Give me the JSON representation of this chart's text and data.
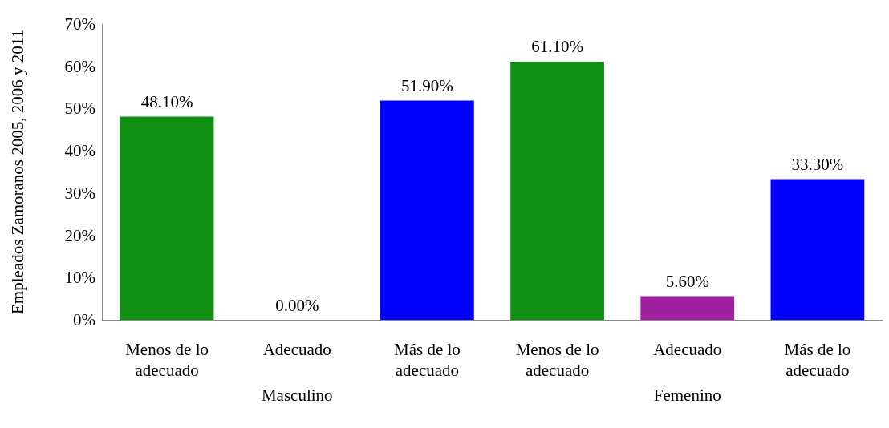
{
  "chart_data": {
    "type": "bar",
    "ylabel": "Empleados Zamoranos 2005, 2006 y 2011",
    "categories": [
      "Menos de lo adecuado",
      "Adecuado",
      "Más de lo adecuado",
      "Menos de lo adecuado",
      "Adecuado",
      "Más de lo adecuado"
    ],
    "values": [
      48.1,
      0,
      51.9,
      61.1,
      5.6,
      33.3
    ],
    "colors": [
      "#109010",
      "#a020a0",
      "#0000ff",
      "#109010",
      "#a020a0",
      "#0000ff"
    ],
    "value_labels": [
      "48.10%",
      "0.00%",
      "51.90%",
      "61.10%",
      "5.60%",
      "33.30%"
    ],
    "ylim": [
      0,
      70
    ],
    "yticks": [
      {
        "value": 0,
        "label": "0%"
      },
      {
        "value": 10,
        "label": "10%"
      },
      {
        "value": 20,
        "label": "20%"
      },
      {
        "value": 30,
        "label": "30%"
      },
      {
        "value": 40,
        "label": "40%"
      },
      {
        "value": 50,
        "label": "50%"
      },
      {
        "value": 60,
        "label": "60%"
      },
      {
        "value": 70,
        "label": "70%"
      }
    ],
    "annotations": [
      "Masculino",
      "Femenino"
    ],
    "grid": false
  }
}
